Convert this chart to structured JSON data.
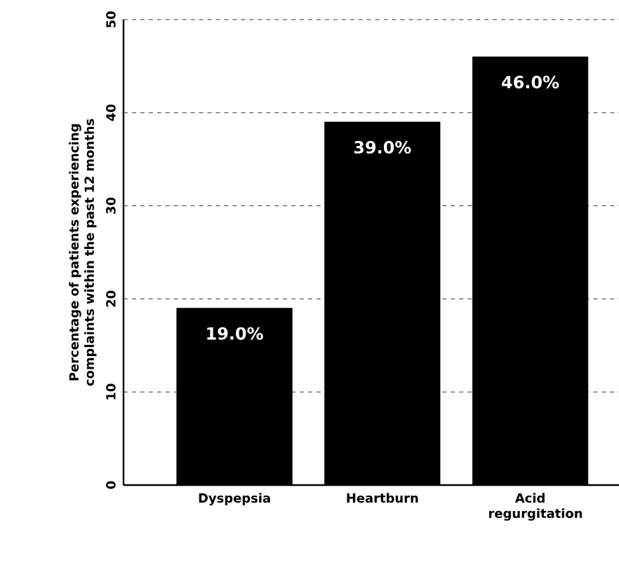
{
  "chart_data": {
    "type": "bar",
    "ylabel": "Percentage of patients experiencing complaints within the past 12 months",
    "categories": [
      "Dyspepsia",
      "Heartburn",
      "Acid regurgitation"
    ],
    "values": [
      19,
      39,
      46
    ],
    "value_labels": [
      "19.0%",
      "39.0%",
      "46.0%"
    ],
    "color": "#000000",
    "ylim": [
      0,
      50
    ],
    "yticks": [
      0,
      10,
      20,
      30,
      40,
      50
    ],
    "grid": "y"
  }
}
